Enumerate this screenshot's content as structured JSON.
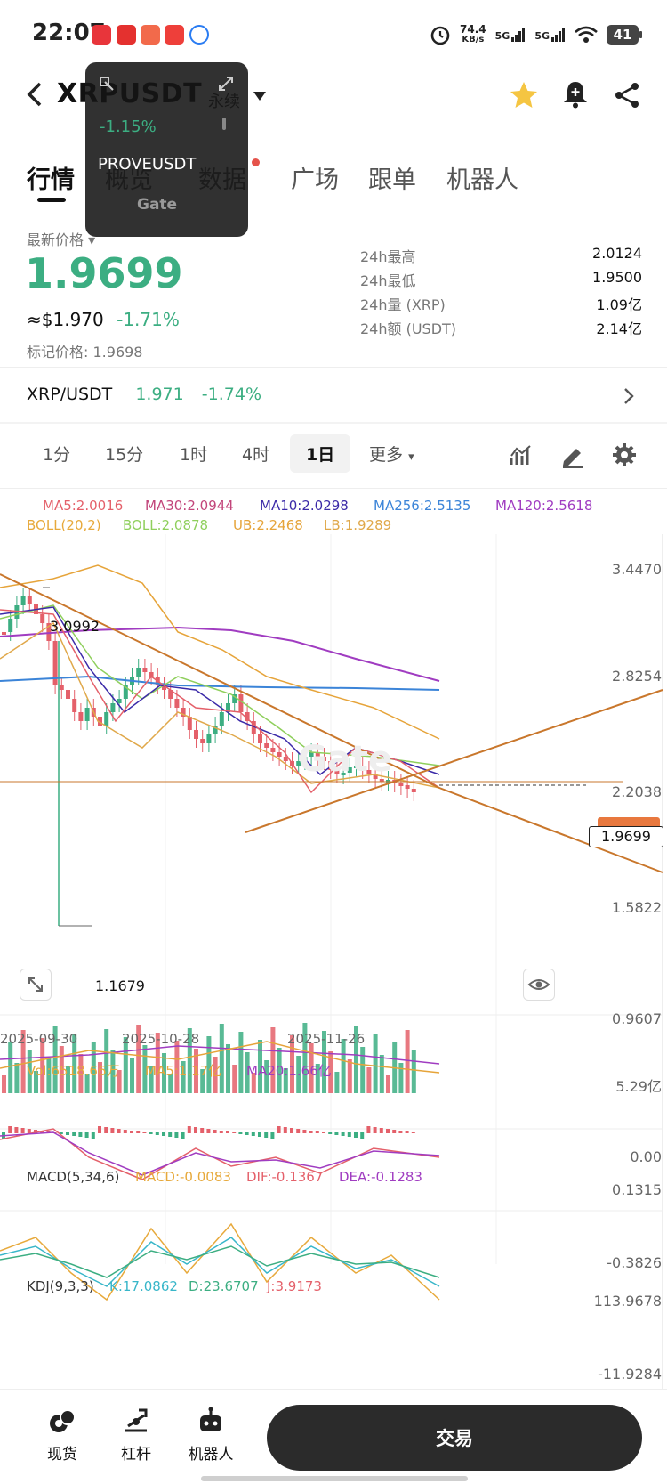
{
  "status_bar": {
    "time": "22:07",
    "net_speed": "74.4",
    "net_unit": "KB/s",
    "signal1": "5G",
    "signal2": "5G",
    "battery": "41"
  },
  "header": {
    "back_icon": "chevron-left-icon",
    "pair": "XRPUSDT",
    "market_type": "永续",
    "favorite_color": "#f5c542"
  },
  "tabs": [
    {
      "label": "行情",
      "active": true
    },
    {
      "label": "概览",
      "active": false
    },
    {
      "label": "数据",
      "active": false,
      "badge": true
    },
    {
      "label": "广场",
      "active": false
    },
    {
      "label": "跟单",
      "active": false
    },
    {
      "label": "机器人",
      "active": false
    }
  ],
  "popup": {
    "change": "-1.15%",
    "symbol": "PROVEUSDT",
    "brand": "Gate"
  },
  "price": {
    "latest_label": "最新价格",
    "latest": "1.9699",
    "usd": "≈$1.970",
    "change": "-1.71%",
    "mark_label": "标记价格:",
    "mark": "1.9698"
  },
  "stats": [
    {
      "label": "24h最高",
      "value": "2.0124"
    },
    {
      "label": "24h最低",
      "value": "1.9500"
    },
    {
      "label": "24h量 (XRP)",
      "value": "1.09亿"
    },
    {
      "label": "24h额 (USDT)",
      "value": "2.14亿"
    }
  ],
  "spot": {
    "pair": "XRP/USDT",
    "price": "1.971",
    "change": "-1.74%"
  },
  "timeframes": [
    {
      "label": "1分"
    },
    {
      "label": "15分"
    },
    {
      "label": "1时"
    },
    {
      "label": "4时"
    },
    {
      "label": "1日",
      "selected": true
    },
    {
      "label": "更多"
    }
  ],
  "indicators": {
    "ma5": "MA5:2.0016",
    "ma30": "MA30:2.0944",
    "ma10": "MA10:2.0298",
    "ma256": "MA256:2.5135",
    "ma120": "MA120:2.5618",
    "boll": "BOLL(20,2)",
    "boll_mid": "BOLL:2.0878",
    "ub": "UB:2.2468",
    "lb": "LB:1.9289"
  },
  "chart_data": {
    "type": "candlestick",
    "y_axis_ticks": [
      "3.4470",
      "2.8254",
      "2.2038",
      "1.5822",
      "0.9607"
    ],
    "x_axis_ticks": [
      "2025-09-30",
      "2025-10-28",
      "2025-11-26"
    ],
    "high_label": "3.0992",
    "low_label": "1.1679",
    "current_price_tag": "1.9699",
    "volume": {
      "vol": "Vol:6518.66万",
      "ma5": "MA5:1.17亿",
      "ma20": "MA20:1.66亿",
      "ticks": [
        "5.29亿",
        "0.00"
      ]
    },
    "macd": {
      "label": "MACD(5,34,6)",
      "macd": "MACD:-0.0083",
      "dif": "DIF:-0.1367",
      "dea": "DEA:-0.1283",
      "ticks": [
        "0.1315",
        "-0.3826"
      ]
    },
    "kdj": {
      "label": "KDJ(9,3,3)",
      "k": "K:17.0862",
      "d": "D:23.6707",
      "j": "J:3.9173",
      "ticks": [
        "113.9678",
        "-11.9284"
      ]
    },
    "colors": {
      "up": "#3cae82",
      "down": "#e4606a"
    }
  },
  "bottom_nav": [
    {
      "label": "现货",
      "icon": "spot-icon"
    },
    {
      "label": "杠杆",
      "icon": "leverage-icon"
    },
    {
      "label": "机器人",
      "icon": "robot-icon"
    }
  ],
  "trade_button": "交易"
}
